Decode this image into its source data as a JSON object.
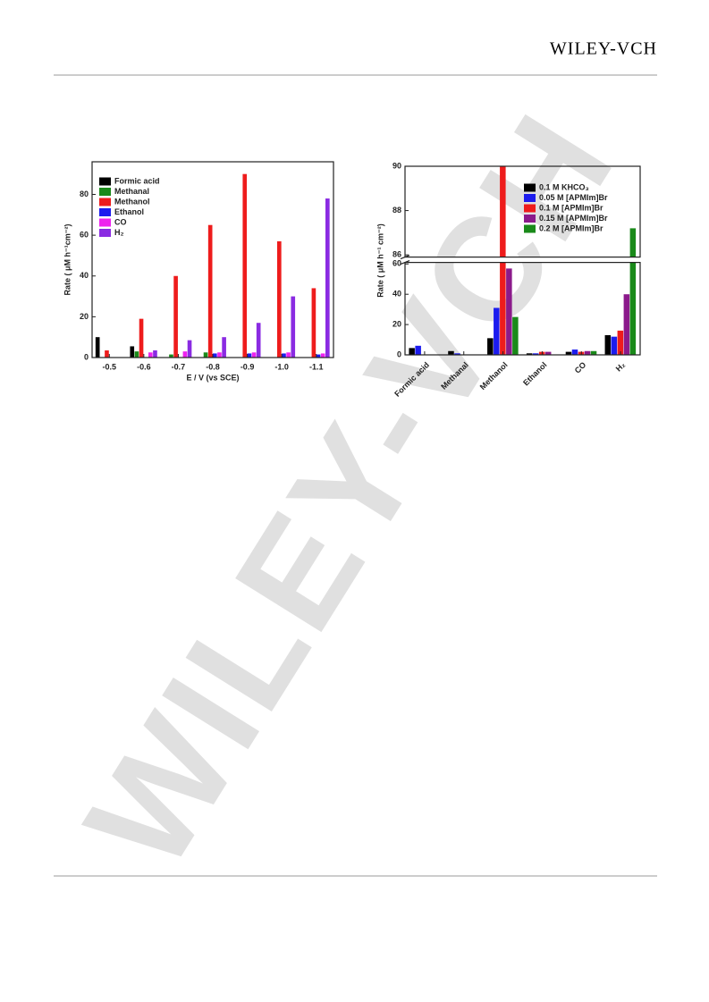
{
  "header": {
    "publisher": "WILEY-VCH"
  },
  "watermark": "WILEY-VCH",
  "chart_data": [
    {
      "type": "bar",
      "xlabel": "E / V (vs SCE)",
      "ylabel": "Rate ( μM h⁻¹cm⁻²)",
      "categories": [
        "-0.5",
        "-0.6",
        "-0.7",
        "-0.8",
        "-0.9",
        "-1.0",
        "-1.1"
      ],
      "ylim": [
        0,
        96
      ],
      "yticks": [
        0,
        20,
        40,
        60,
        80
      ],
      "legend": "top-left",
      "series": [
        {
          "name": "Formic acid",
          "color": "#000000",
          "values": [
            10,
            5.5,
            0,
            0,
            0,
            0,
            0
          ]
        },
        {
          "name": "Methanal",
          "color": "#1a8a1a",
          "values": [
            0,
            3,
            1.5,
            2.5,
            0,
            0,
            0
          ]
        },
        {
          "name": "Methanol",
          "color": "#ee1c1c",
          "values": [
            3.5,
            19,
            40,
            65,
            90,
            57,
            34
          ]
        },
        {
          "name": "Ethanol",
          "color": "#1c1cee",
          "values": [
            0,
            0,
            0,
            2,
            2,
            2,
            1.5
          ]
        },
        {
          "name": "CO",
          "color": "#ee22ee",
          "values": [
            0,
            2.5,
            3,
            2.5,
            2.5,
            2.5,
            2
          ]
        },
        {
          "name": "H₂",
          "color": "#8a2be2",
          "values": [
            0,
            3.5,
            8.5,
            10,
            17,
            30,
            78
          ]
        }
      ]
    },
    {
      "type": "bar",
      "ylabel": "Rate ( μM h⁻¹ cm⁻²)",
      "categories": [
        "Formic acid",
        "Methanal",
        "Methanol",
        "Ethanol",
        "CO",
        "H₂"
      ],
      "ylim": [
        0,
        90
      ],
      "ybreak": [
        61,
        85.9
      ],
      "yticks": [
        0,
        20,
        40,
        60,
        86,
        88,
        90
      ],
      "legend": "top-right",
      "series": [
        {
          "name": "0.1 M KHCO₃",
          "color": "#000000",
          "values": [
            4.5,
            2.5,
            11,
            1,
            2,
            13
          ]
        },
        {
          "name": "0.05 M [APMIm]Br",
          "color": "#1c1cee",
          "values": [
            6,
            1,
            31,
            1,
            3.5,
            12
          ]
        },
        {
          "name": "0.1 M [APMIm]Br",
          "color": "#ee1c1c",
          "values": [
            0,
            0,
            90,
            2,
            2,
            16
          ]
        },
        {
          "name": "0.15 M [APMIm]Br",
          "color": "#8b1a8b",
          "values": [
            0,
            0,
            57,
            2,
            2.5,
            40
          ]
        },
        {
          "name": "0.2 M [APMIm]Br",
          "color": "#1a8a1a",
          "values": [
            0,
            0,
            25,
            0,
            2.5,
            87.2
          ]
        }
      ]
    }
  ]
}
